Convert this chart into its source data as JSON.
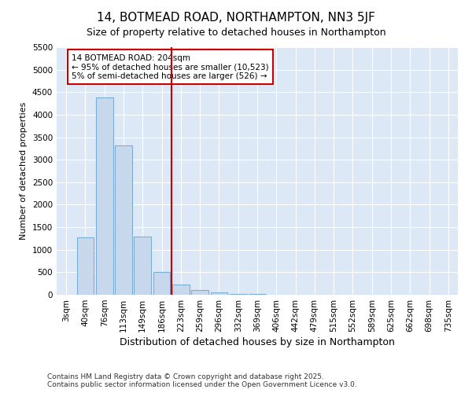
{
  "title": "14, BOTMEAD ROAD, NORTHAMPTON, NN3 5JF",
  "subtitle": "Size of property relative to detached houses in Northampton",
  "xlabel": "Distribution of detached houses by size in Northampton",
  "ylabel": "Number of detached properties",
  "bar_color": "#c8d8ec",
  "bar_edge_color": "#7aaed6",
  "categories": [
    "3sqm",
    "40sqm",
    "76sqm",
    "113sqm",
    "149sqm",
    "186sqm",
    "223sqm",
    "259sqm",
    "296sqm",
    "332sqm",
    "369sqm",
    "406sqm",
    "442sqm",
    "479sqm",
    "515sqm",
    "552sqm",
    "589sqm",
    "625sqm",
    "662sqm",
    "698sqm",
    "735sqm"
  ],
  "values": [
    0,
    1270,
    4380,
    3320,
    1290,
    510,
    230,
    100,
    50,
    20,
    10,
    5,
    2,
    1,
    0,
    0,
    0,
    0,
    0,
    0,
    0
  ],
  "ylim": [
    0,
    5500
  ],
  "yticks": [
    0,
    500,
    1000,
    1500,
    2000,
    2500,
    3000,
    3500,
    4000,
    4500,
    5000,
    5500
  ],
  "vline_x_index": 6,
  "vline_color": "#cc0000",
  "annotation_text": "14 BOTMEAD ROAD: 204sqm\n← 95% of detached houses are smaller (10,523)\n5% of semi-detached houses are larger (526) →",
  "footnote1": "Contains HM Land Registry data © Crown copyright and database right 2025.",
  "footnote2": "Contains public sector information licensed under the Open Government Licence v3.0.",
  "fig_background_color": "#ffffff",
  "plot_background_color": "#dce8f5",
  "grid_color": "#ffffff",
  "title_fontsize": 11,
  "subtitle_fontsize": 9,
  "ylabel_fontsize": 8,
  "xlabel_fontsize": 9,
  "tick_fontsize": 7.5,
  "footnote_fontsize": 6.5
}
